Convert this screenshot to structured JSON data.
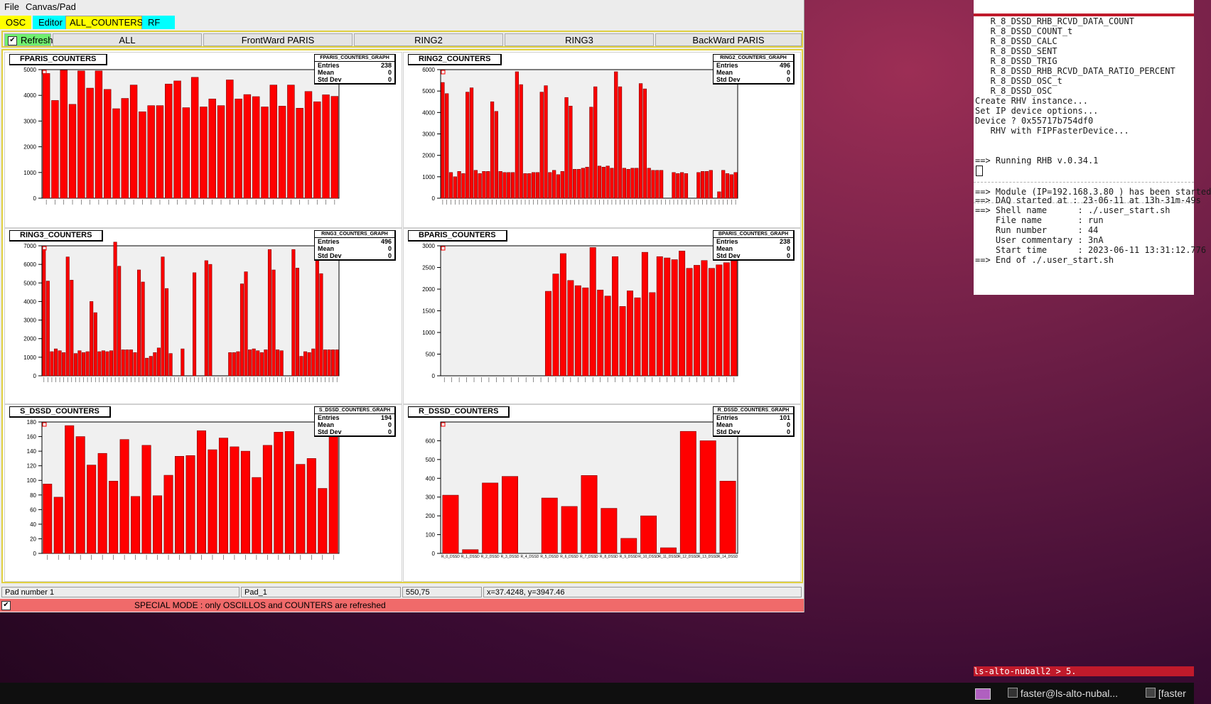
{
  "menu": {
    "file": "File",
    "canvas_pad": "Canvas/Pad"
  },
  "tabs": [
    {
      "label": "OSC",
      "color": "#ffff00"
    },
    {
      "label": "Editor",
      "color": "#00ffff"
    },
    {
      "label": "ALL_COUNTERS",
      "color": "#ffff00"
    },
    {
      "label": "RF",
      "color": "#00ffff"
    }
  ],
  "refresh": {
    "label": "Refresh",
    "checked": true
  },
  "buttons": [
    "ALL",
    "FrontWard PARIS",
    "RING2",
    "RING3",
    "BackWard PARIS"
  ],
  "pads": [
    {
      "title": "FPARIS_COUNTERS",
      "stats_title": "FPARIS_COUNTERS_GRAPH",
      "entries": "238",
      "mean": "0",
      "stddev": "0"
    },
    {
      "title": "RING2_COUNTERS",
      "stats_title": "RING2_COUNTERS_GRAPH",
      "entries": "496",
      "mean": "0",
      "stddev": "0"
    },
    {
      "title": "RING3_COUNTERS",
      "stats_title": "RING3_COUNTERS_GRAPH",
      "entries": "496",
      "mean": "0",
      "stddev": "0"
    },
    {
      "title": "BPARIS_COUNTERS",
      "stats_title": "BPARIS_COUNTERS_GRAPH",
      "entries": "238",
      "mean": "0",
      "stddev": "0"
    },
    {
      "title": "S_DSSD_COUNTERS",
      "stats_title": "S_DSSD_COUNTERS_GRAPH",
      "entries": "194",
      "mean": "0",
      "stddev": "0"
    },
    {
      "title": "R_DSSD_COUNTERS",
      "stats_title": "R_DSSD_COUNTERS_GRAPH",
      "entries": "101",
      "mean": "0",
      "stddev": "0"
    }
  ],
  "stat_labels": {
    "entries": "Entries",
    "mean": "Mean",
    "stddev": "Std Dev"
  },
  "chart_data": [
    {
      "type": "bar",
      "title": "FPARIS_COUNTERS",
      "ylim": [
        0,
        5000
      ],
      "yticks": [
        0,
        1000,
        2000,
        3000,
        4000,
        5000
      ],
      "values": [
        4850,
        3800,
        4980,
        3650,
        4950,
        4280,
        4950,
        4230,
        3480,
        3880,
        4400,
        3360,
        3600,
        3600,
        4440,
        4560,
        3520,
        4700,
        3550,
        3860,
        3600,
        4600,
        3860,
        4030,
        3950,
        3550,
        4400,
        3580,
        4400,
        3500,
        4150,
        3750,
        4020,
        3960
      ]
    },
    {
      "type": "bar",
      "title": "RING2_COUNTERS",
      "ylim": [
        0,
        6000
      ],
      "yticks": [
        0,
        1000,
        2000,
        3000,
        4000,
        5000,
        6000
      ],
      "values": [
        5400,
        4880,
        1200,
        1000,
        1250,
        1150,
        4950,
        5150,
        1300,
        1150,
        1250,
        1250,
        4500,
        4050,
        1250,
        1200,
        1200,
        1200,
        5900,
        5300,
        1150,
        1150,
        1200,
        1200,
        4950,
        5250,
        1200,
        1300,
        1100,
        1250,
        4700,
        4300,
        1350,
        1350,
        1400,
        1450,
        4250,
        5200,
        1500,
        1450,
        1500,
        1400,
        5900,
        5200,
        1400,
        1350,
        1400,
        1400,
        5350,
        5100,
        1400,
        1300,
        1300,
        1300,
        0,
        0,
        1200,
        1150,
        1200,
        1150,
        0,
        0,
        1200,
        1250,
        1250,
        1300,
        0,
        300,
        1300,
        1150,
        1100,
        1200
      ]
    },
    {
      "type": "bar",
      "title": "RING3_COUNTERS",
      "ylim": [
        0,
        7000
      ],
      "yticks": [
        0,
        1000,
        2000,
        3000,
        4000,
        5000,
        6000,
        7000
      ],
      "values": [
        6800,
        5100,
        1300,
        1450,
        1350,
        1250,
        6400,
        5150,
        1200,
        1350,
        1250,
        1300,
        4000,
        3400,
        1300,
        1350,
        1300,
        1350,
        7200,
        5900,
        1400,
        1400,
        1400,
        1250,
        5700,
        5050,
        950,
        1050,
        1250,
        1500,
        6400,
        4700,
        1200,
        0,
        0,
        1450,
        0,
        0,
        5550,
        0,
        0,
        6200,
        6000,
        0,
        0,
        0,
        0,
        1250,
        1250,
        1300,
        4950,
        5600,
        1400,
        1450,
        1350,
        1250,
        1400,
        6800,
        5700,
        1400,
        1350,
        0,
        0,
        6800,
        5800,
        1050,
        1300,
        1250,
        1450,
        6500,
        5500,
        1400,
        1400,
        1400,
        1400
      ]
    },
    {
      "type": "bar",
      "title": "BPARIS_COUNTERS",
      "ylim": [
        0,
        3000
      ],
      "yticks": [
        0,
        500,
        1000,
        1500,
        2000,
        2500,
        3000
      ],
      "values": [
        0,
        0,
        0,
        0,
        0,
        0,
        0,
        0,
        0,
        0,
        0,
        0,
        0,
        0,
        1950,
        2350,
        2820,
        2200,
        2080,
        2030,
        2960,
        1980,
        1840,
        2750,
        1600,
        1960,
        1800,
        2850,
        1920,
        2750,
        2720,
        2680,
        2880,
        2480,
        2550,
        2660,
        2480,
        2560,
        2610,
        2650
      ]
    },
    {
      "type": "bar",
      "title": "S_DSSD_COUNTERS",
      "ylim": [
        0,
        180
      ],
      "yticks": [
        0,
        20,
        40,
        60,
        80,
        100,
        120,
        140,
        160,
        180
      ],
      "values": [
        95,
        77,
        175,
        160,
        121,
        137,
        99,
        156,
        78,
        148,
        79,
        107,
        133,
        134,
        168,
        142,
        158,
        146,
        140,
        104,
        148,
        166,
        167,
        122,
        130,
        89,
        163
      ]
    },
    {
      "type": "bar",
      "title": "R_DSSD_COUNTERS",
      "ylim": [
        0,
        700
      ],
      "yticks": [
        0,
        100,
        200,
        300,
        400,
        500,
        600
      ],
      "values": [
        310,
        20,
        375,
        410,
        0,
        295,
        250,
        415,
        240,
        80,
        200,
        30,
        650,
        600,
        385
      ],
      "categories": [
        "R_0_DSSD",
        "R_1_DSSD",
        "R_2_DSSD",
        "R_3_DSSD",
        "R_4_DSSD",
        "R_5_DSSD",
        "R_6_DSSD",
        "R_7_DSSD",
        "R_8_DSSD",
        "R_9_DSSD",
        "R_10_DSSD",
        "R_11_DSSD",
        "R_12_DSSD",
        "R_13_DSSD",
        "R_14_DSSD"
      ]
    }
  ],
  "status": {
    "pad_number": "Pad number 1",
    "pad_name": "Pad_1",
    "coords": "550,75",
    "xy": "x=37.4248, y=3947.46"
  },
  "special_mode": "SPECIAL MODE : only OSCILLOS and COUNTERS are refreshed",
  "terminal": {
    "lines_a": [
      "   R_8_DSSD_RHB_RCVD_DATA_COUNT",
      "   R_8_DSSD_COUNT_t",
      "   R_8_DSSD_CALC",
      "   R_8_DSSD_SENT",
      "   R_8_DSSD_TRIG",
      "   R_8_DSSD_RHB_RCVD_DATA_RATIO_PERCENT",
      "   R_8_DSSD_OSC_t",
      "   R_8_DSSD_OSC",
      "Create RHV instance...",
      "Set IP device options...",
      "Device ? 0x55717b754df0",
      "   RHV with FIPFasterDevice..."
    ],
    "running": "==> Running RHB v.0.34.1",
    "module": "==> Module (IP=192.168.3.80 ) has been started",
    "lines_b": [
      "==> DAQ started at : 23-06-11 at 13h-31m-49s",
      "==> Shell name      : ./.user_start.sh",
      "    File name       : run",
      "    Run number      : 44",
      "    User commentary : 3nA",
      "    Start time      : 2023-06-11 13:31:12.776",
      "==> End of ./.user_start.sh"
    ],
    "statusbar": "ls-alto-nuball2 > 5."
  },
  "taskbar": {
    "item1": "faster@ls-alto-nubal...",
    "item2": "[faster"
  }
}
